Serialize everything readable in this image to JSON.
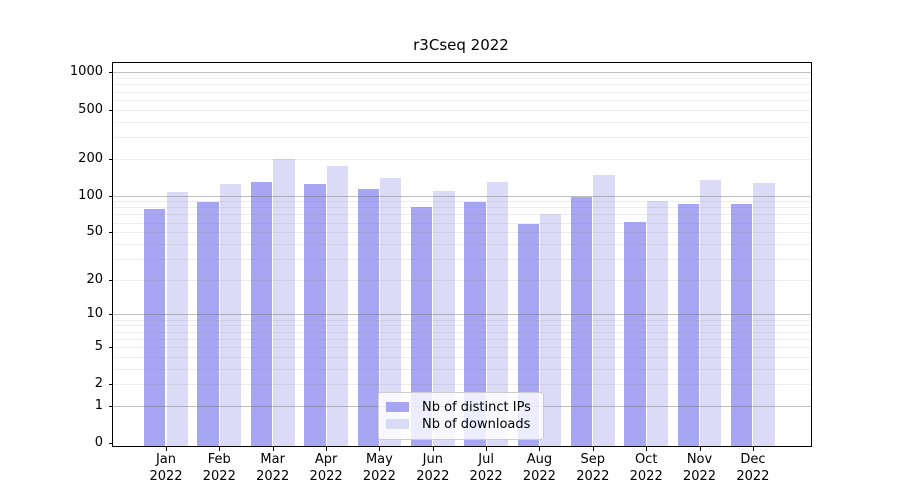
{
  "chart_data": {
    "type": "bar",
    "title": "r3Cseq 2022",
    "months": [
      "Jan",
      "Feb",
      "Mar",
      "Apr",
      "May",
      "Jun",
      "Jul",
      "Aug",
      "Sep",
      "Oct",
      "Nov",
      "Dec"
    ],
    "year": "2022",
    "series": [
      {
        "name": "Nb of distinct IPs",
        "color": "#a6a6f2",
        "values": [
          77,
          89,
          128,
          124,
          112,
          81,
          89,
          58,
          97,
          61,
          86,
          85
        ]
      },
      {
        "name": "Nb of downloads",
        "color": "#dbdbf8",
        "values": [
          107,
          124,
          200,
          174,
          140,
          108,
          128,
          70,
          146,
          91,
          133,
          127
        ]
      }
    ],
    "yticks": [
      0,
      1,
      2,
      5,
      10,
      20,
      50,
      100,
      200,
      500,
      1000
    ],
    "yscale": "log1p",
    "ylim": [
      0,
      1240
    ],
    "grid": true,
    "legend_position": "lower center",
    "axis_color": "#000000",
    "major_grid_color": "#b0b0b0",
    "minor_grid_color": "#ebebeb"
  }
}
